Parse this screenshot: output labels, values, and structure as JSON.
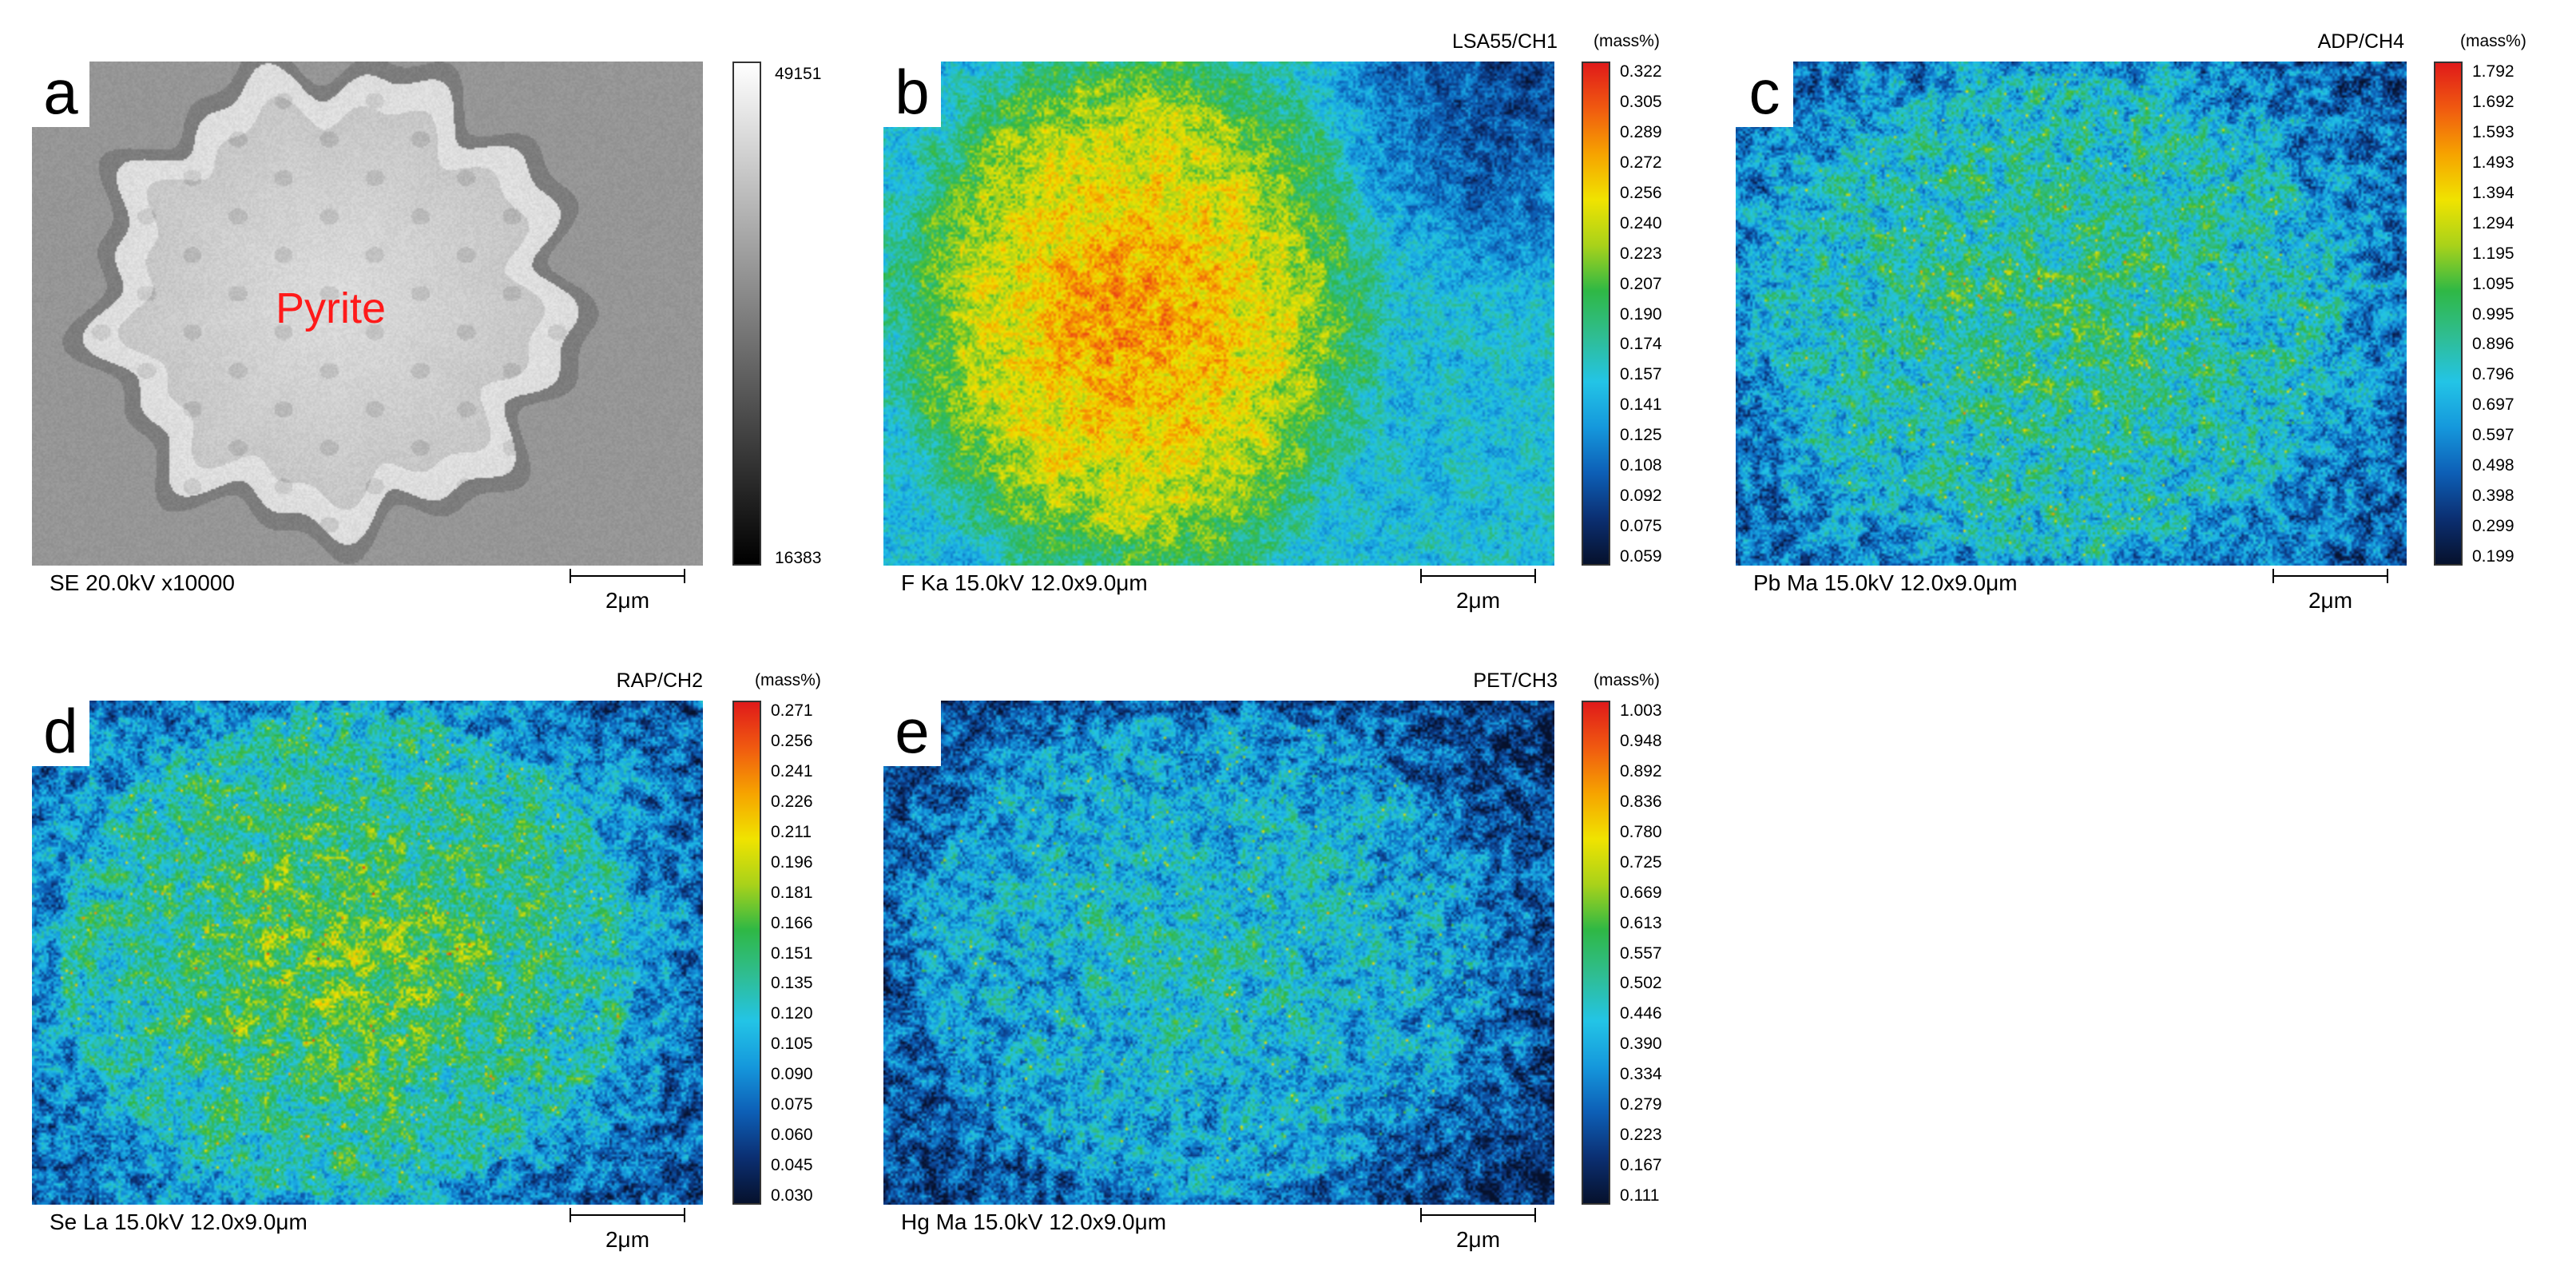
{
  "colors": {
    "rainbow": [
      "#06112c",
      "#0b2f72",
      "#0d5fb6",
      "#1598dc",
      "#23c4e6",
      "#2fbd92",
      "#2fb845",
      "#a9d21a",
      "#f0e300",
      "#f6a300",
      "#f05a10",
      "#e01a1a"
    ],
    "label_red": "#ff1a1a"
  },
  "panels": [
    {
      "id": "a",
      "letter": "a",
      "kind": "se",
      "label": "Pyrite",
      "colorbar_ticks": [
        "49151",
        "16383"
      ],
      "caption": "SE 20.0kV x10000",
      "scale_label": "2μm"
    },
    {
      "id": "b",
      "letter": "b",
      "kind": "map",
      "channel": "LSA55/CH1",
      "unit": "(mass%)",
      "pattern": "strong",
      "colorbar_ticks": [
        "0.322",
        "0.305",
        "0.289",
        "0.272",
        "0.256",
        "0.240",
        "0.223",
        "0.207",
        "0.190",
        "0.174",
        "0.157",
        "0.141",
        "0.125",
        "0.108",
        "0.092",
        "0.075",
        "0.059"
      ],
      "caption": "F Ka 15.0kV 12.0x9.0μm",
      "scale_label": "2μm"
    },
    {
      "id": "c",
      "letter": "c",
      "kind": "map",
      "channel": "ADP/CH4",
      "unit": "(mass%)",
      "pattern": "medium",
      "colorbar_ticks": [
        "1.792",
        "1.692",
        "1.593",
        "1.493",
        "1.394",
        "1.294",
        "1.195",
        "1.095",
        "0.995",
        "0.896",
        "0.796",
        "0.697",
        "0.597",
        "0.498",
        "0.398",
        "0.299",
        "0.199"
      ],
      "caption": "Pb Ma 15.0kV 12.0x9.0μm",
      "scale_label": "2μm"
    },
    {
      "id": "d",
      "letter": "d",
      "kind": "map",
      "channel": "RAP/CH2",
      "unit": "(mass%)",
      "pattern": "medium-high",
      "colorbar_ticks": [
        "0.271",
        "0.256",
        "0.241",
        "0.226",
        "0.211",
        "0.196",
        "0.181",
        "0.166",
        "0.151",
        "0.135",
        "0.120",
        "0.105",
        "0.090",
        "0.075",
        "0.060",
        "0.045",
        "0.030"
      ],
      "caption": "Se La 15.0kV 12.0x9.0μm",
      "scale_label": "2μm"
    },
    {
      "id": "e",
      "letter": "e",
      "kind": "map",
      "channel": "PET/CH3",
      "unit": "(mass%)",
      "pattern": "weak",
      "colorbar_ticks": [
        "1.003",
        "0.948",
        "0.892",
        "0.836",
        "0.780",
        "0.725",
        "0.669",
        "0.613",
        "0.557",
        "0.502",
        "0.446",
        "0.390",
        "0.334",
        "0.279",
        "0.223",
        "0.167",
        "0.111"
      ],
      "caption": "Hg Ma 15.0kV 12.0x9.0μm",
      "scale_label": "2μm"
    }
  ]
}
